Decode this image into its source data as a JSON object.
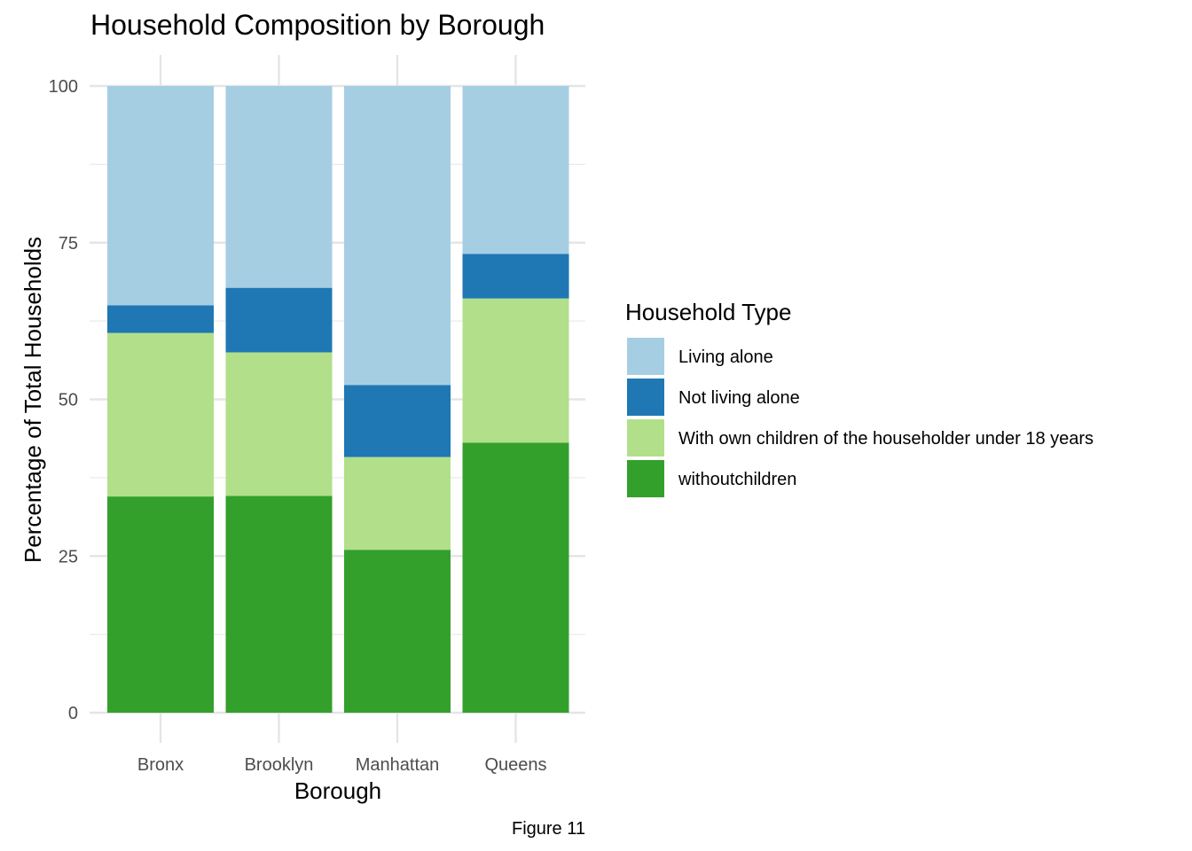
{
  "chart_data": {
    "type": "bar",
    "stacked": true,
    "title": "Household Composition by Borough",
    "xlabel": "Borough",
    "ylabel": "Percentage of Total Households",
    "caption": "Figure 11",
    "categories": [
      "Bronx",
      "Brooklyn",
      "Manhattan",
      "Queens"
    ],
    "ylim": [
      0,
      100
    ],
    "yticks": [
      0,
      25,
      50,
      75,
      100
    ],
    "grid": true,
    "legend": {
      "title": "Household Type",
      "position": "right"
    },
    "series": [
      {
        "name": "withoutchildren",
        "color": "#33A02C",
        "values": [
          34.5,
          34.6,
          26.0,
          43.1
        ]
      },
      {
        "name": "With own children of the householder under 18 years",
        "color": "#B2DF8A",
        "values": [
          26.1,
          22.9,
          14.8,
          23.0
        ]
      },
      {
        "name": "Not living alone",
        "color": "#1F78B4",
        "values": [
          4.4,
          10.3,
          11.5,
          7.1
        ]
      },
      {
        "name": "Living alone",
        "color": "#A6CEE3",
        "values": [
          35.0,
          32.2,
          47.7,
          26.8
        ]
      }
    ],
    "legend_order": [
      "Living alone",
      "Not living alone",
      "With own children of the householder under 18 years",
      "withoutchildren"
    ]
  }
}
